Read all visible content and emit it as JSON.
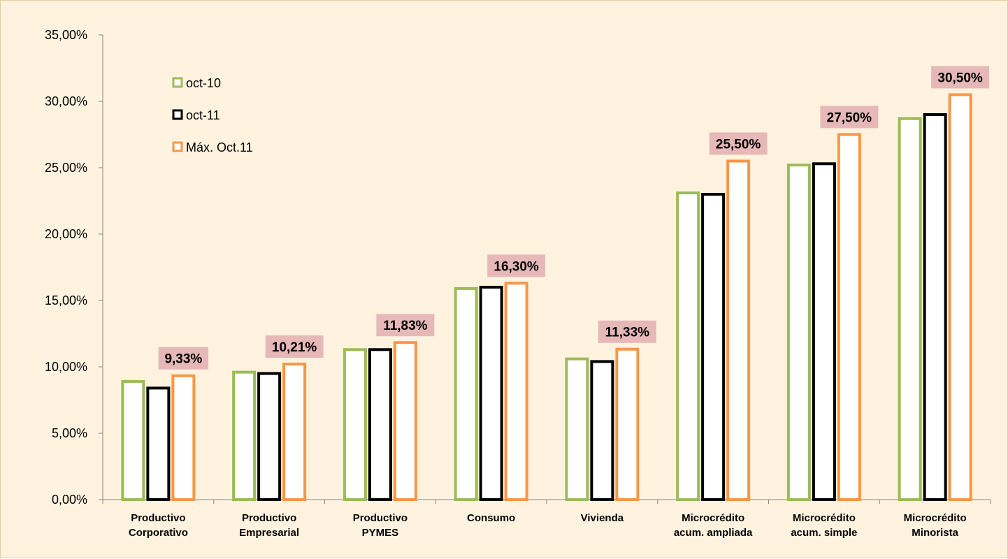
{
  "chart_data": {
    "type": "bar",
    "categories": [
      [
        "Productivo",
        "Corporativo"
      ],
      [
        "Productivo",
        "Empresarial"
      ],
      [
        "Productivo",
        "PYMES"
      ],
      [
        "Consumo"
      ],
      [
        "Vivienda"
      ],
      [
        "Microcrédito",
        "acum. ampliada"
      ],
      [
        "Microcrédito",
        "acum. simple"
      ],
      [
        "Microcrédito",
        "Minorista"
      ]
    ],
    "series": [
      {
        "name": "oct-10",
        "color": "#9bbb59",
        "values": [
          8.9,
          9.6,
          11.3,
          15.9,
          10.6,
          23.1,
          25.2,
          28.7
        ]
      },
      {
        "name": "oct-11",
        "color": "#000000",
        "values": [
          8.4,
          9.5,
          11.3,
          16.0,
          10.4,
          23.0,
          25.3,
          29.0
        ]
      },
      {
        "name": "Máx. Oct.11",
        "color": "#f79646",
        "values": [
          9.33,
          10.21,
          11.83,
          16.3,
          11.33,
          25.5,
          27.5,
          30.5
        ]
      }
    ],
    "data_labels": [
      "9,33%",
      "10,21%",
      "11,83%",
      "16,30%",
      "11,33%",
      "25,50%",
      "27,50%",
      "30,50%"
    ],
    "data_label_background": "#e6b9b8",
    "y_ticks": [
      "0,00%",
      "5,00%",
      "10,00%",
      "15,00%",
      "20,00%",
      "25,00%",
      "30,00%",
      "35,00%"
    ],
    "ylim": [
      0,
      35
    ],
    "legend_position": "top-left",
    "background": "#fff3e0"
  }
}
